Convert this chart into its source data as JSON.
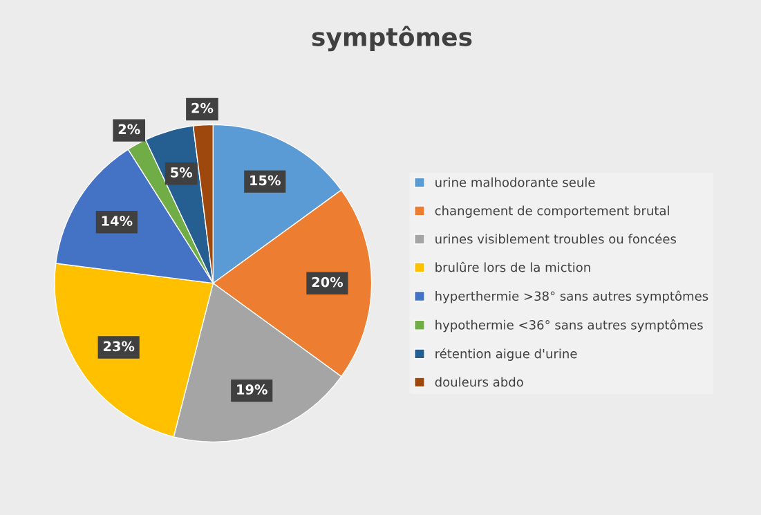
{
  "chart_data": {
    "type": "pie",
    "title": "symptômes",
    "categories": [
      "urine malhodorante seule",
      "changement de comportement brutal",
      "urines visiblement troubles ou foncées",
      "brulûre lors de la miction",
      "hyperthermie >38° sans autres symptômes",
      "hypothermie <36° sans autres symptômes",
      "rétention aigue d'urine",
      "douleurs abdo"
    ],
    "values": [
      15,
      20,
      19,
      23,
      14,
      2,
      5,
      2
    ],
    "value_labels": [
      "15%",
      "20%",
      "19%",
      "23%",
      "14%",
      "2%",
      "5%",
      "2%"
    ],
    "colors": [
      "#5b9bd5",
      "#ed7d31",
      "#a5a5a5",
      "#ffc000",
      "#4472c4",
      "#70ad47",
      "#255e91",
      "#9e480e"
    ],
    "legend": "right"
  }
}
